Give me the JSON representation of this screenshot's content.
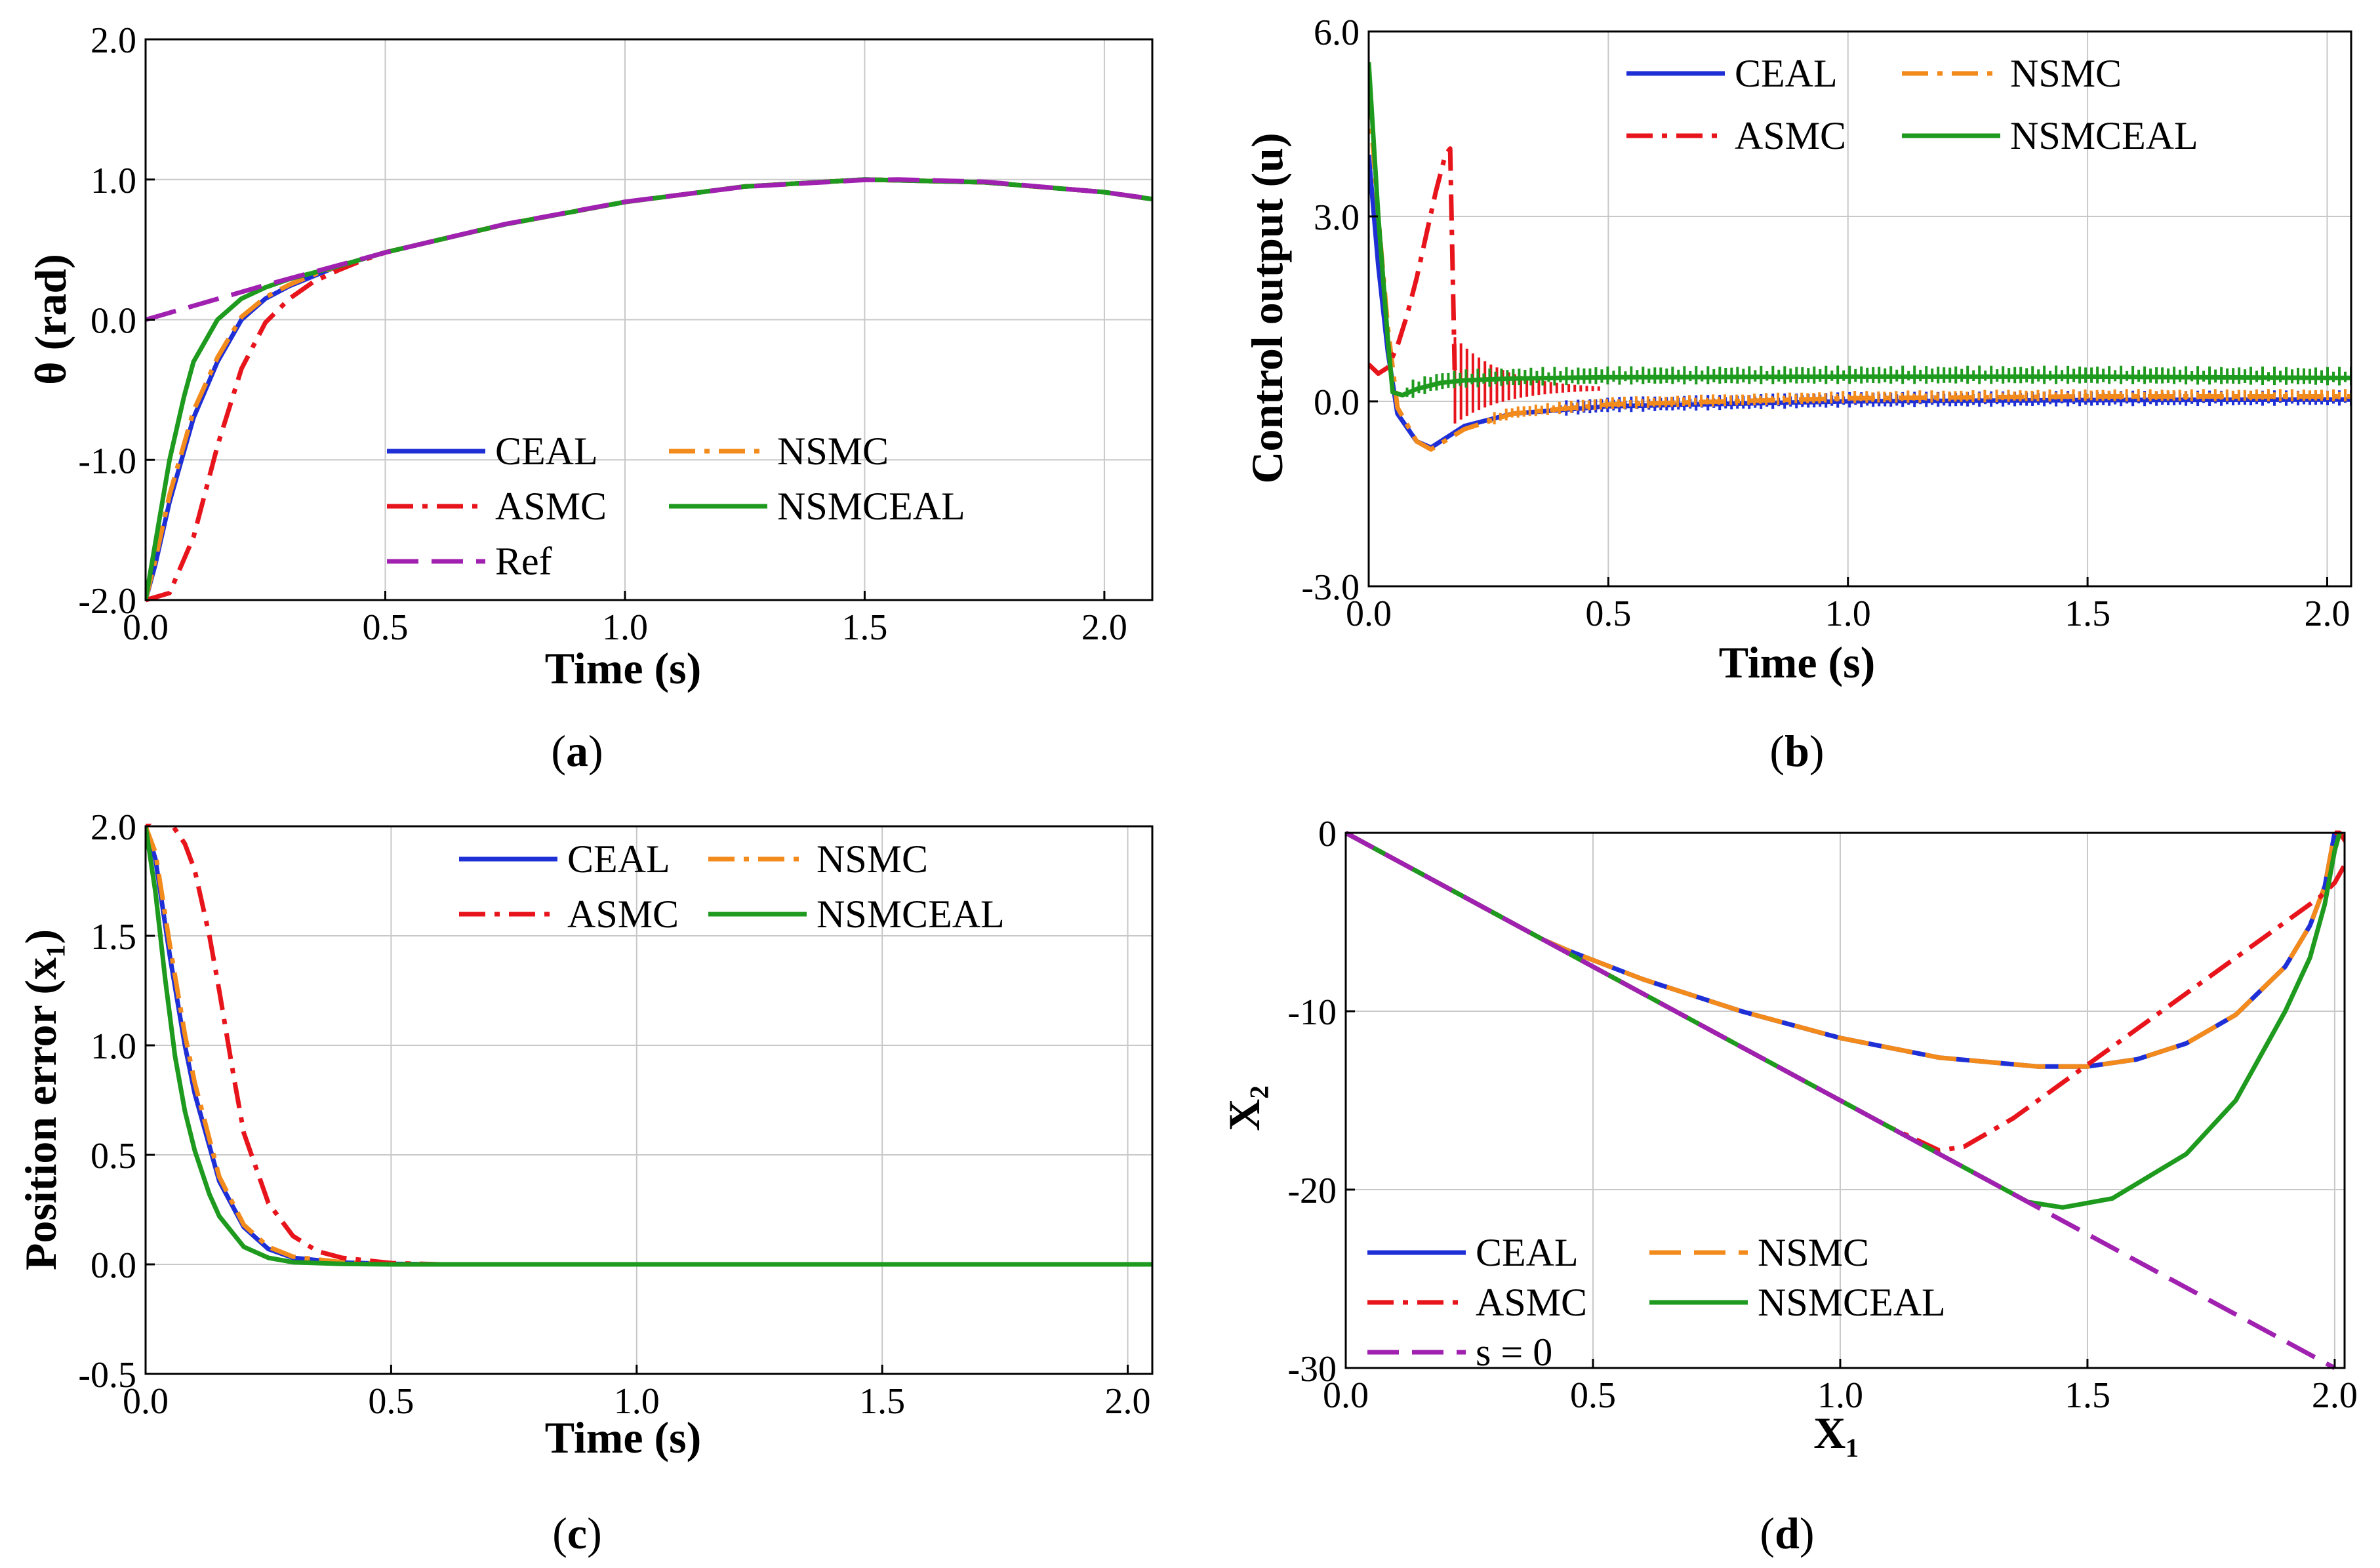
{
  "chart_data": [
    {
      "id": "a",
      "type": "line",
      "caption": "a",
      "xlabel": "Time (s)",
      "ylabel": "θ (rad)",
      "xlim": [
        0,
        2.1
      ],
      "ylim": [
        -2.0,
        2.0
      ],
      "xticks": [
        "0.0",
        "0.5",
        "1.0",
        "1.5",
        "2.0"
      ],
      "yticks": [
        "-2.0",
        "-1.0",
        "0.0",
        "1.0",
        "2.0"
      ],
      "grid": true,
      "legend": {
        "placement": "bottom-center",
        "columns": 2
      },
      "series": [
        {
          "name": "CEAL",
          "color": "#1f2fd6",
          "dash": "dotted-solid",
          "x": [
            0,
            0.02,
            0.05,
            0.1,
            0.15,
            0.2,
            0.25,
            0.3,
            0.35,
            0.4,
            0.5,
            0.75,
            1.0,
            1.25,
            1.5,
            1.75,
            2.0,
            2.1
          ],
          "y": [
            -2.0,
            -1.75,
            -1.3,
            -0.7,
            -0.3,
            0.0,
            0.15,
            0.24,
            0.31,
            0.38,
            0.48,
            0.68,
            0.84,
            0.95,
            1.0,
            0.98,
            0.91,
            0.86
          ]
        },
        {
          "name": "NSMC",
          "color": "#f28a1c",
          "dash": "dashdot",
          "x": [
            0,
            0.02,
            0.05,
            0.1,
            0.15,
            0.2,
            0.25,
            0.3,
            0.35,
            0.4,
            0.5,
            0.75,
            1.0,
            1.25,
            1.5,
            1.75,
            2.0,
            2.1
          ],
          "y": [
            -2.0,
            -1.72,
            -1.25,
            -0.65,
            -0.27,
            0.02,
            0.16,
            0.25,
            0.32,
            0.38,
            0.48,
            0.68,
            0.84,
            0.95,
            1.0,
            0.98,
            0.91,
            0.86
          ]
        },
        {
          "name": "ASMC",
          "color": "#e8141c",
          "dash": "dashdot",
          "x": [
            0,
            0.05,
            0.1,
            0.15,
            0.2,
            0.25,
            0.3,
            0.35,
            0.4,
            0.45,
            0.5,
            0.75,
            1.0,
            1.25,
            1.5,
            1.75,
            2.0,
            2.1
          ],
          "y": [
            -2.0,
            -1.95,
            -1.55,
            -0.9,
            -0.35,
            -0.02,
            0.15,
            0.27,
            0.35,
            0.42,
            0.48,
            0.68,
            0.84,
            0.95,
            1.0,
            0.98,
            0.91,
            0.86
          ]
        },
        {
          "name": "NSMCEAL",
          "color": "#1e9a1e",
          "dash": "solid",
          "x": [
            0,
            0.02,
            0.05,
            0.08,
            0.1,
            0.15,
            0.2,
            0.25,
            0.3,
            0.4,
            0.5,
            0.75,
            1.0,
            1.25,
            1.5,
            1.75,
            2.0,
            2.1
          ],
          "y": [
            -2.0,
            -1.6,
            -1.0,
            -0.55,
            -0.3,
            0.0,
            0.15,
            0.23,
            0.29,
            0.38,
            0.48,
            0.68,
            0.84,
            0.95,
            1.0,
            0.98,
            0.91,
            0.86
          ]
        },
        {
          "name": "Ref",
          "color": "#a020b0",
          "dash": "dashed",
          "x": [
            0,
            0.25,
            0.5,
            0.75,
            1.0,
            1.25,
            1.5,
            1.57,
            1.75,
            2.0,
            2.1
          ],
          "y": [
            0.0,
            0.247,
            0.479,
            0.682,
            0.841,
            0.949,
            0.997,
            1.0,
            0.984,
            0.909,
            0.863
          ]
        }
      ]
    },
    {
      "id": "b",
      "type": "line",
      "caption": "b",
      "xlabel": "Time (s)",
      "ylabel": "Control output (u)",
      "xlim": [
        0,
        2.05
      ],
      "ylim": [
        -3.0,
        6.0
      ],
      "xticks": [
        "0.0",
        "0.5",
        "1.0",
        "1.5",
        "2.0"
      ],
      "yticks": [
        "-3.0",
        "0.0",
        "3.0",
        "6.0"
      ],
      "grid": true,
      "legend": {
        "placement": "top-center",
        "columns": 2
      },
      "series": [
        {
          "name": "CEAL",
          "color": "#1f2fd6",
          "dash": "solid",
          "x": [
            0,
            0.02,
            0.04,
            0.06,
            0.1,
            0.13,
            0.2,
            0.3,
            0.5,
            0.75,
            1.0,
            1.5,
            2.0,
            2.05
          ],
          "y": [
            4.0,
            2.2,
            0.8,
            -0.2,
            -0.65,
            -0.75,
            -0.4,
            -0.2,
            -0.08,
            -0.04,
            0.0,
            0.02,
            0.03,
            0.03
          ],
          "chatter": {
            "from": 0.4,
            "to": 2.05,
            "amplitude": 0.25
          }
        },
        {
          "name": "NSMC",
          "color": "#f28a1c",
          "dash": "dashdot",
          "x": [
            0,
            0.02,
            0.04,
            0.06,
            0.1,
            0.13,
            0.2,
            0.3,
            0.5,
            0.75,
            1.0,
            1.5,
            2.0,
            2.05
          ],
          "y": [
            5.0,
            3.0,
            1.2,
            -0.1,
            -0.65,
            -0.78,
            -0.45,
            -0.2,
            -0.05,
            0.0,
            0.05,
            0.08,
            0.08,
            0.08
          ],
          "chatter": {
            "from": 0.25,
            "to": 2.05,
            "amplitude": 0.2
          }
        },
        {
          "name": "ASMC",
          "color": "#e8141c",
          "dash": "dashdot",
          "x": [
            0,
            0.02,
            0.04,
            0.06,
            0.08,
            0.1,
            0.12,
            0.14,
            0.16,
            0.17,
            0.18
          ],
          "y": [
            0.6,
            0.45,
            0.55,
            0.9,
            1.4,
            2.0,
            2.7,
            3.4,
            4.0,
            4.1,
            0.3
          ],
          "chatter": {
            "from": 0.18,
            "to": 0.48,
            "amplitude": 1.4,
            "decay": true
          }
        },
        {
          "name": "NSMCEAL",
          "color": "#1e9a1e",
          "dash": "solid",
          "x": [
            0,
            0.02,
            0.04,
            0.05,
            0.07,
            0.1,
            0.15,
            0.2,
            0.3,
            0.5,
            1.0,
            1.5,
            2.0,
            2.05
          ],
          "y": [
            5.5,
            3.0,
            1.0,
            0.15,
            0.1,
            0.2,
            0.3,
            0.34,
            0.37,
            0.39,
            0.4,
            0.4,
            0.38,
            0.38
          ],
          "chatter": {
            "from": 0.08,
            "to": 2.05,
            "amplitude": 0.3
          }
        }
      ]
    },
    {
      "id": "c",
      "type": "line",
      "caption": "c",
      "xlabel": "Time (s)",
      "ylabel": "Position error (x₁)",
      "xlim": [
        0,
        2.05
      ],
      "ylim": [
        -0.5,
        2.0
      ],
      "xticks": [
        "0.0",
        "0.5",
        "1.0",
        "1.5",
        "2.0"
      ],
      "yticks": [
        "-0.5",
        "0.0",
        "0.5",
        "1.0",
        "1.5",
        "2.0"
      ],
      "grid": true,
      "legend": {
        "placement": "top-right",
        "columns": 2
      },
      "series": [
        {
          "name": "CEAL",
          "color": "#1f2fd6",
          "dash": "dotted-solid",
          "x": [
            0,
            0.02,
            0.05,
            0.08,
            0.1,
            0.15,
            0.2,
            0.25,
            0.3,
            0.4,
            0.5,
            0.6,
            1.0,
            1.5,
            2.05
          ],
          "y": [
            2.0,
            1.85,
            1.4,
            1.0,
            0.78,
            0.38,
            0.17,
            0.07,
            0.03,
            0.008,
            0.002,
            0.0,
            0.0,
            0.0,
            0.0
          ]
        },
        {
          "name": "NSMC",
          "color": "#f28a1c",
          "dash": "dashdot",
          "x": [
            0,
            0.02,
            0.05,
            0.08,
            0.1,
            0.15,
            0.2,
            0.25,
            0.3,
            0.4,
            0.5,
            0.6,
            1.0,
            1.5,
            2.05
          ],
          "y": [
            2.0,
            1.88,
            1.45,
            1.05,
            0.83,
            0.4,
            0.18,
            0.08,
            0.035,
            0.01,
            0.002,
            0.0,
            0.0,
            0.0,
            0.0
          ]
        },
        {
          "name": "ASMC",
          "color": "#e8141c",
          "dash": "dashdot",
          "x": [
            0,
            0.02,
            0.05,
            0.08,
            0.1,
            0.13,
            0.15,
            0.18,
            0.2,
            0.25,
            0.3,
            0.35,
            0.4,
            0.5,
            0.6,
            1.0,
            2.05
          ],
          "y": [
            2.0,
            2.04,
            2.02,
            1.92,
            1.8,
            1.5,
            1.25,
            0.85,
            0.6,
            0.28,
            0.13,
            0.06,
            0.03,
            0.006,
            0.0,
            0.0,
            0.0
          ]
        },
        {
          "name": "NSMCEAL",
          "color": "#1e9a1e",
          "dash": "solid",
          "x": [
            0,
            0.02,
            0.04,
            0.06,
            0.08,
            0.1,
            0.13,
            0.15,
            0.2,
            0.25,
            0.3,
            0.4,
            0.5,
            1.0,
            1.5,
            2.05
          ],
          "y": [
            2.0,
            1.7,
            1.3,
            0.95,
            0.7,
            0.52,
            0.32,
            0.22,
            0.08,
            0.03,
            0.01,
            0.002,
            0.0,
            0.0,
            0.0,
            0.0
          ]
        }
      ]
    },
    {
      "id": "d",
      "type": "line",
      "caption": "d",
      "xlabel": "X₁",
      "ylabel": "X₂",
      "xlim": [
        0,
        2.02
      ],
      "ylim": [
        -30,
        0
      ],
      "xticks": [
        "0.0",
        "0.5",
        "1.0",
        "1.5",
        "2.0"
      ],
      "yticks": [
        "-30",
        "-20",
        "-10",
        "0"
      ],
      "grid": true,
      "legend": {
        "placement": "bottom-left",
        "columns": 2
      },
      "series": [
        {
          "name": "CEAL",
          "color": "#1f2fd6",
          "dash": "solid",
          "x": [
            0,
            0.2,
            0.4,
            0.45,
            0.6,
            0.8,
            1.0,
            1.2,
            1.4,
            1.5,
            1.6,
            1.7,
            1.8,
            1.9,
            1.95,
            1.98,
            2.0
          ],
          "y": [
            0,
            -3.0,
            -6.0,
            -6.6,
            -8.2,
            -10.0,
            -11.5,
            -12.6,
            -13.1,
            -13.1,
            -12.7,
            -11.8,
            -10.2,
            -7.5,
            -5.2,
            -3.0,
            0
          ]
        },
        {
          "name": "NSMC",
          "color": "#f28a1c",
          "dash": "dashed",
          "x": [
            0,
            0.2,
            0.4,
            0.45,
            0.6,
            0.8,
            1.0,
            1.2,
            1.4,
            1.5,
            1.6,
            1.7,
            1.8,
            1.9,
            1.95,
            1.98,
            2.0
          ],
          "y": [
            0,
            -3.0,
            -6.0,
            -6.6,
            -8.2,
            -10.0,
            -11.5,
            -12.6,
            -13.1,
            -13.1,
            -12.7,
            -11.8,
            -10.2,
            -7.5,
            -5.2,
            -3.0,
            0
          ]
        },
        {
          "name": "ASMC",
          "color": "#e8141c",
          "dash": "dashdot",
          "x": [
            0,
            0.4,
            0.8,
            1.1,
            1.2,
            1.25,
            1.35,
            1.5,
            1.65,
            1.8,
            1.9,
            1.97,
            2.0,
            2.02,
            2.03,
            2.01,
            2.0
          ],
          "y": [
            0,
            -6.0,
            -12.0,
            -16.5,
            -17.8,
            -17.6,
            -16.0,
            -13.0,
            -10.0,
            -7.0,
            -5.0,
            -3.6,
            -2.8,
            -1.8,
            -0.8,
            0.0,
            0.0
          ]
        },
        {
          "name": "NSMCEAL",
          "color": "#1e9a1e",
          "dash": "solid",
          "x": [
            0,
            0.4,
            0.8,
            1.2,
            1.38,
            1.45,
            1.55,
            1.7,
            1.8,
            1.9,
            1.95,
            1.98,
            2.0,
            2.01
          ],
          "y": [
            0,
            -6.0,
            -12.0,
            -18.0,
            -20.7,
            -21.0,
            -20.5,
            -18.0,
            -15.0,
            -10.0,
            -7.0,
            -4.0,
            -1.0,
            0.0
          ]
        },
        {
          "name": "s = 0",
          "color": "#a020b0",
          "dash": "dashed",
          "x": [
            0,
            2.0
          ],
          "y": [
            0,
            -30
          ]
        }
      ]
    }
  ]
}
